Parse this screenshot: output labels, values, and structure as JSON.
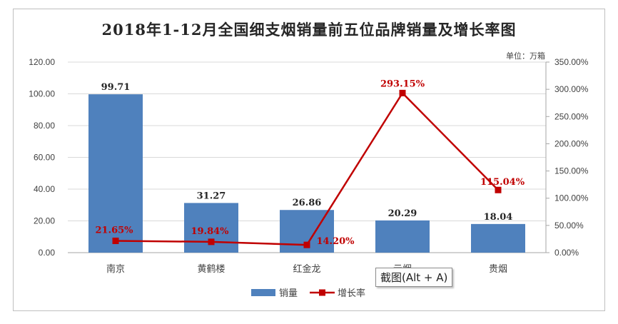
{
  "chart_data": {
    "type": "bar",
    "title": "2018年1-12月全国细支烟销量前五位品牌销量及增长率图",
    "unit_note": "单位：万箱",
    "categories": [
      "南京",
      "黄鹤楼",
      "红金龙",
      "云烟",
      "贵烟"
    ],
    "series": [
      {
        "name": "销量",
        "type": "bar",
        "axis": "left",
        "values": [
          99.71,
          31.27,
          26.86,
          20.29,
          18.04
        ],
        "labels": [
          "99.71",
          "31.27",
          "26.86",
          "20.29",
          "18.04"
        ],
        "color": "#4f81bd"
      },
      {
        "name": "增长率",
        "type": "line",
        "axis": "right",
        "values": [
          21.65,
          19.84,
          14.2,
          293.15,
          115.04
        ],
        "labels": [
          "21.65%",
          "19.84%",
          "14.20%",
          "293.15%",
          "115.04%"
        ],
        "color": "#c00000"
      }
    ],
    "y_left": {
      "min": 0,
      "max": 120,
      "step": 20,
      "ticks": [
        "0.00",
        "20.00",
        "40.00",
        "60.00",
        "80.00",
        "100.00",
        "120.00"
      ]
    },
    "y_right": {
      "min": 0,
      "max": 350,
      "step": 50,
      "ticks": [
        "0.00%",
        "50.00%",
        "100.00%",
        "150.00%",
        "200.00%",
        "250.00%",
        "300.00%",
        "350.00%"
      ]
    },
    "grid": true,
    "legend_position": "bottom"
  },
  "tooltip_text": "截图(Alt + A)"
}
